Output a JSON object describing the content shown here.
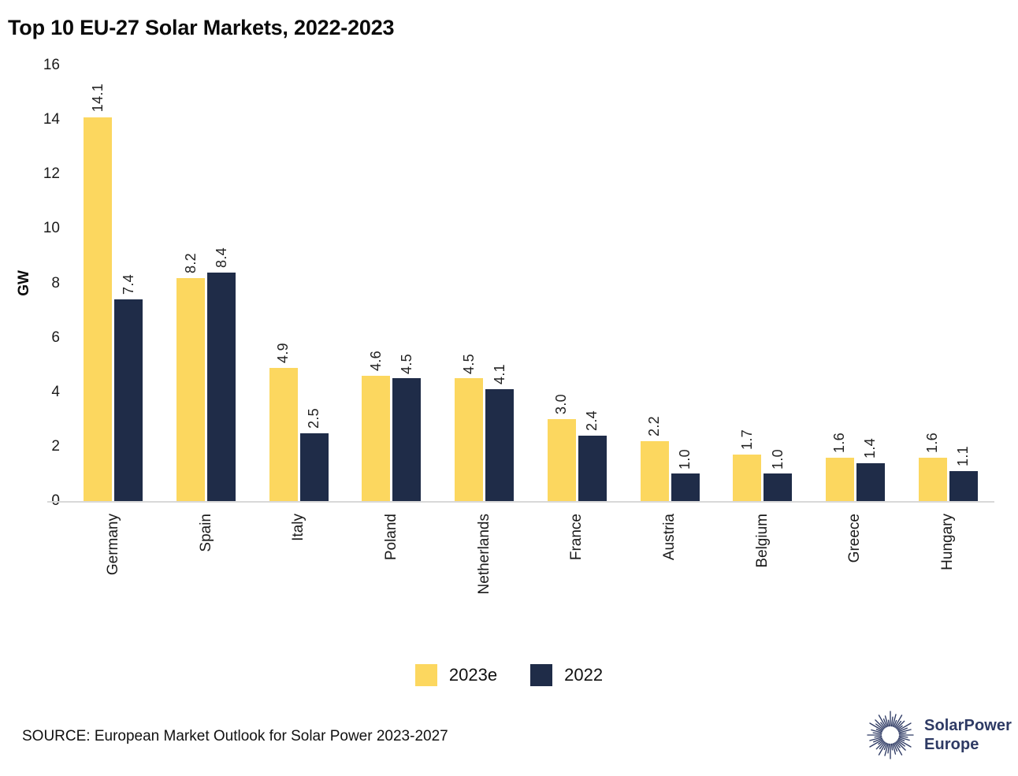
{
  "title": "Top 10 EU-27 Solar Markets, 2022-2023",
  "chart_data": {
    "type": "bar",
    "title": "Top 10 EU-27 Solar Markets, 2022-2023",
    "xlabel": "",
    "ylabel": "GW",
    "ylim": [
      0,
      16
    ],
    "yticks": [
      0,
      2,
      4,
      6,
      8,
      10,
      12,
      14,
      16
    ],
    "grid": false,
    "legend_position": "bottom-center",
    "value_labels": "one_decimal_rotated_90",
    "categories": [
      "Germany",
      "Spain",
      "Italy",
      "Poland",
      "Netherlands",
      "France",
      "Austria",
      "Belgium",
      "Greece",
      "Hungary"
    ],
    "series": [
      {
        "name": "2023e",
        "color": "#FCD75F",
        "values": [
          14.1,
          8.2,
          4.9,
          4.6,
          4.5,
          3.0,
          2.2,
          1.7,
          1.6,
          1.6
        ]
      },
      {
        "name": "2022",
        "color": "#1F2C48",
        "values": [
          7.4,
          8.4,
          2.5,
          4.5,
          4.1,
          2.4,
          1.0,
          1.0,
          1.4,
          1.1
        ]
      }
    ]
  },
  "legend": {
    "items": [
      {
        "label": "2023e",
        "color": "#FCD75F"
      },
      {
        "label": "2022",
        "color": "#1F2C48"
      }
    ]
  },
  "source": "SOURCE: European Market Outlook for Solar Power 2023-2027",
  "logo": {
    "icon": "sunburst-icon",
    "line1": "SolarPower",
    "line2": "Europe",
    "color": "#2E3A64"
  },
  "colors": {
    "background": "#FFFFFF",
    "axis_line": "#D8D8D8",
    "text": "#1A1A1A"
  }
}
